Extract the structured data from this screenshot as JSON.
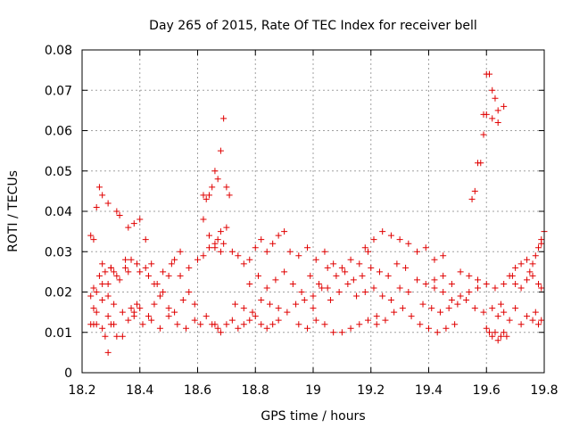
{
  "chart_data": {
    "type": "scatter",
    "title": "Day 265 of 2015, Rate Of TEC Index for receiver bell",
    "xlabel": "GPS time / hours",
    "ylabel": "ROTI / TECUs",
    "xlim": [
      18.2,
      19.8
    ],
    "ylim": [
      0,
      0.08
    ],
    "xticks": [
      18.2,
      18.4,
      18.6,
      18.8,
      19.0,
      19.2,
      19.4,
      19.6,
      19.8
    ],
    "xtick_labels": [
      "18.2",
      "18.4",
      "18.6",
      "18.8",
      "19",
      "19.2",
      "19.4",
      "19.6",
      "19.8"
    ],
    "yticks": [
      0,
      0.01,
      0.02,
      0.03,
      0.04,
      0.05,
      0.06,
      0.07,
      0.08
    ],
    "ytick_labels": [
      "0",
      "0.01",
      "0.02",
      "0.03",
      "0.04",
      "0.05",
      "0.06",
      "0.07",
      "0.08"
    ],
    "grid": true,
    "marker": "+",
    "series": [
      {
        "name": "ROTI",
        "color": "#e00000",
        "x": [
          18.23,
          18.24,
          18.25,
          18.26,
          18.27,
          18.28,
          18.29,
          18.3,
          18.32,
          18.33,
          18.23,
          18.24,
          18.25,
          18.27,
          18.28,
          18.29,
          18.3,
          18.31,
          18.32,
          18.34,
          18.23,
          18.24,
          18.26,
          18.27,
          18.29,
          18.3,
          18.31,
          18.33,
          18.35,
          18.36,
          18.24,
          18.25,
          18.27,
          18.29,
          18.31,
          18.34,
          18.36,
          18.37,
          18.38,
          18.39,
          18.25,
          18.27,
          18.29,
          18.32,
          18.35,
          18.37,
          18.39,
          18.4,
          18.42,
          18.43,
          18.36,
          18.38,
          18.4,
          18.42,
          18.44,
          18.46,
          18.48,
          18.5,
          18.52,
          18.54,
          18.38,
          18.4,
          18.43,
          18.45,
          18.47,
          18.5,
          18.52,
          18.55,
          18.57,
          18.59,
          18.41,
          18.44,
          18.47,
          18.5,
          18.53,
          18.56,
          18.59,
          18.61,
          18.63,
          18.65,
          18.45,
          18.48,
          18.51,
          18.54,
          18.57,
          18.6,
          18.62,
          18.64,
          18.66,
          18.68,
          18.62,
          18.63,
          18.64,
          18.65,
          18.66,
          18.67,
          18.68,
          18.69,
          18.7,
          18.71,
          18.62,
          18.64,
          18.66,
          18.67,
          18.68,
          18.69,
          18.7,
          18.66,
          18.67,
          18.68,
          18.7,
          18.72,
          18.74,
          18.76,
          18.78,
          18.8,
          18.82,
          18.84,
          18.86,
          18.88,
          18.72,
          18.74,
          18.76,
          18.78,
          18.8,
          18.82,
          18.84,
          18.86,
          18.88,
          18.9,
          18.73,
          18.76,
          18.79,
          18.82,
          18.85,
          18.88,
          18.91,
          18.94,
          18.97,
          19.0,
          18.78,
          18.81,
          18.84,
          18.87,
          18.9,
          18.93,
          18.96,
          18.99,
          19.02,
          19.05,
          18.92,
          18.95,
          18.98,
          19.01,
          19.04,
          19.07,
          19.1,
          19.13,
          19.16,
          19.19,
          18.95,
          18.98,
          19.01,
          19.04,
          19.07,
          19.1,
          19.13,
          19.16,
          19.19,
          19.22,
          19.0,
          19.03,
          19.06,
          19.09,
          19.12,
          19.15,
          19.18,
          19.21,
          19.24,
          19.27,
          19.05,
          19.08,
          19.11,
          19.14,
          19.17,
          19.2,
          19.23,
          19.26,
          19.29,
          19.32,
          19.18,
          19.21,
          19.24,
          19.27,
          19.3,
          19.33,
          19.36,
          19.39,
          19.42,
          19.45,
          19.22,
          19.25,
          19.28,
          19.31,
          19.34,
          19.37,
          19.4,
          19.43,
          19.46,
          19.49,
          19.3,
          19.33,
          19.36,
          19.39,
          19.42,
          19.45,
          19.48,
          19.51,
          19.54,
          19.57,
          19.38,
          19.41,
          19.44,
          19.47,
          19.5,
          19.53,
          19.56,
          19.59,
          19.62,
          19.65,
          19.42,
          19.45,
          19.48,
          19.51,
          19.54,
          19.57,
          19.6,
          19.63,
          19.66,
          19.69,
          19.55,
          19.56,
          19.57,
          19.58,
          19.59,
          19.6,
          19.61,
          19.62,
          19.63,
          19.64,
          19.6,
          19.61,
          19.62,
          19.63,
          19.64,
          19.65,
          19.66,
          19.67,
          19.59,
          19.6,
          19.62,
          19.64,
          19.66,
          19.68,
          19.7,
          19.72,
          19.74,
          19.76,
          19.78,
          19.79,
          19.64,
          19.66,
          19.68,
          19.7,
          19.72,
          19.74,
          19.76,
          19.77,
          19.78,
          19.79,
          19.7,
          19.72,
          19.74,
          19.75,
          19.76,
          19.77,
          19.78,
          19.79,
          19.8,
          19.79
        ],
        "y": [
          0.034,
          0.033,
          0.041,
          0.046,
          0.044,
          0.025,
          0.042,
          0.026,
          0.04,
          0.039,
          0.012,
          0.012,
          0.012,
          0.011,
          0.009,
          0.005,
          0.012,
          0.012,
          0.009,
          0.009,
          0.019,
          0.021,
          0.024,
          0.027,
          0.022,
          0.026,
          0.025,
          0.023,
          0.028,
          0.025,
          0.016,
          0.015,
          0.018,
          0.014,
          0.017,
          0.015,
          0.013,
          0.016,
          0.014,
          0.017,
          0.02,
          0.022,
          0.019,
          0.024,
          0.026,
          0.028,
          0.027,
          0.025,
          0.026,
          0.024,
          0.036,
          0.037,
          0.038,
          0.033,
          0.027,
          0.022,
          0.02,
          0.024,
          0.028,
          0.03,
          0.015,
          0.016,
          0.014,
          0.017,
          0.019,
          0.016,
          0.015,
          0.018,
          0.02,
          0.017,
          0.012,
          0.013,
          0.011,
          0.014,
          0.012,
          0.011,
          0.013,
          0.012,
          0.014,
          0.012,
          0.022,
          0.025,
          0.027,
          0.024,
          0.026,
          0.028,
          0.029,
          0.031,
          0.032,
          0.03,
          0.044,
          0.043,
          0.044,
          0.046,
          0.05,
          0.048,
          0.055,
          0.063,
          0.046,
          0.044,
          0.038,
          0.034,
          0.031,
          0.033,
          0.035,
          0.032,
          0.036,
          0.012,
          0.011,
          0.01,
          0.012,
          0.013,
          0.011,
          0.012,
          0.013,
          0.014,
          0.012,
          0.011,
          0.012,
          0.013,
          0.03,
          0.029,
          0.027,
          0.028,
          0.031,
          0.033,
          0.03,
          0.032,
          0.034,
          0.035,
          0.017,
          0.016,
          0.015,
          0.018,
          0.017,
          0.016,
          0.015,
          0.017,
          0.018,
          0.016,
          0.022,
          0.024,
          0.021,
          0.023,
          0.025,
          0.022,
          0.02,
          0.024,
          0.022,
          0.021,
          0.03,
          0.029,
          0.031,
          0.028,
          0.03,
          0.027,
          0.026,
          0.028,
          0.027,
          0.03,
          0.012,
          0.011,
          0.013,
          0.012,
          0.01,
          0.01,
          0.011,
          0.012,
          0.013,
          0.012,
          0.019,
          0.021,
          0.018,
          0.02,
          0.022,
          0.019,
          0.02,
          0.021,
          0.019,
          0.018,
          0.026,
          0.024,
          0.025,
          0.023,
          0.024,
          0.026,
          0.025,
          0.024,
          0.027,
          0.026,
          0.031,
          0.033,
          0.035,
          0.034,
          0.033,
          0.032,
          0.03,
          0.031,
          0.028,
          0.029,
          0.014,
          0.013,
          0.015,
          0.016,
          0.014,
          0.012,
          0.011,
          0.01,
          0.011,
          0.012,
          0.021,
          0.02,
          0.023,
          0.022,
          0.021,
          0.02,
          0.018,
          0.019,
          0.02,
          0.021,
          0.017,
          0.016,
          0.015,
          0.016,
          0.017,
          0.018,
          0.016,
          0.015,
          0.016,
          0.017,
          0.023,
          0.024,
          0.022,
          0.025,
          0.024,
          0.023,
          0.022,
          0.021,
          0.022,
          0.024,
          0.043,
          0.045,
          0.052,
          0.052,
          0.059,
          0.074,
          0.074,
          0.07,
          0.068,
          0.065,
          0.011,
          0.01,
          0.009,
          0.01,
          0.008,
          0.009,
          0.01,
          0.009,
          0.064,
          0.064,
          0.063,
          0.062,
          0.066,
          0.024,
          0.022,
          0.021,
          0.023,
          0.024,
          0.022,
          0.021,
          0.014,
          0.015,
          0.013,
          0.016,
          0.012,
          0.014,
          0.013,
          0.015,
          0.012,
          0.013,
          0.026,
          0.027,
          0.028,
          0.025,
          0.027,
          0.029,
          0.031,
          0.033,
          0.035,
          0.032
        ]
      }
    ]
  }
}
